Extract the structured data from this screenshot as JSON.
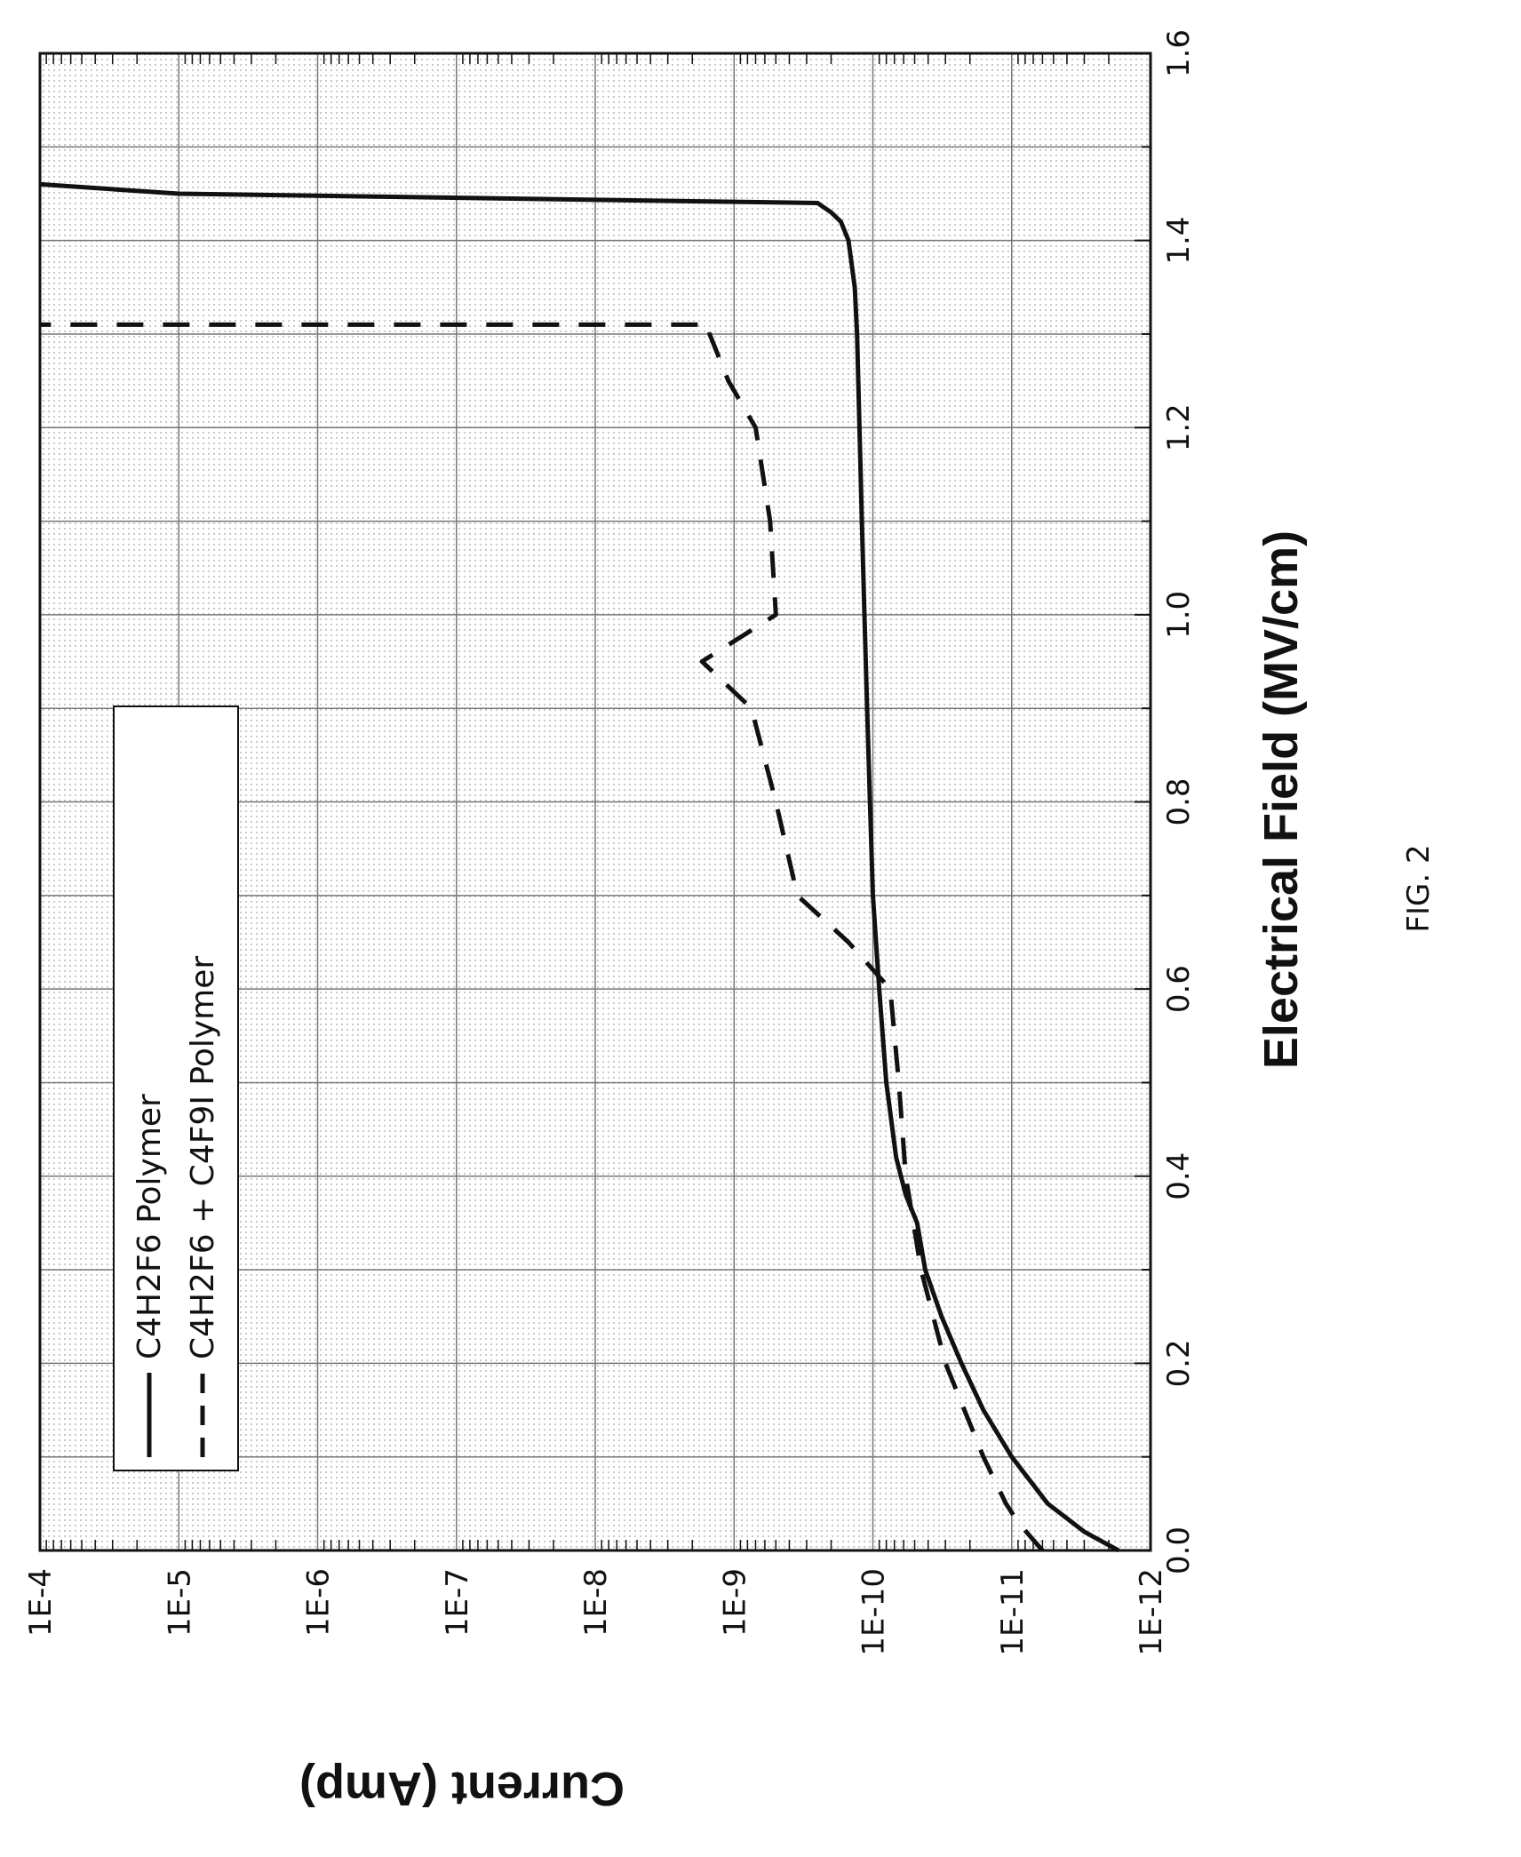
{
  "figure_label": "FIG. 2",
  "chart_data": {
    "type": "line",
    "title": "",
    "xlabel": "Electrical Field (MV/cm)",
    "ylabel": "Current (Amp)",
    "xlim": [
      0.0,
      1.6
    ],
    "ylim_log10": [
      -12,
      -4
    ],
    "yscale": "log",
    "orientation": "rotated 90 degrees counter-clockwise",
    "grid": true,
    "legend_position": "top-left",
    "x_ticks": [
      "0.0",
      "0.2",
      "0.4",
      "0.6",
      "0.8",
      "1.0",
      "1.2",
      "1.4",
      "1.6"
    ],
    "y_ticks": [
      "1E-12",
      "1E-11",
      "1E-10",
      "1E-9",
      "1E-8",
      "1E-7",
      "1E-6",
      "1E-5",
      "1E-4"
    ],
    "series": [
      {
        "name": "C4H2F6 Polymer",
        "style": "solid",
        "color": "#111111",
        "x": [
          0.0,
          0.02,
          0.05,
          0.1,
          0.15,
          0.2,
          0.25,
          0.3,
          0.35,
          0.38,
          0.42,
          0.5,
          0.6,
          0.7,
          0.8,
          0.9,
          1.0,
          1.1,
          1.2,
          1.3,
          1.35,
          1.4,
          1.42,
          1.43,
          1.44,
          1.45,
          1.46
        ],
        "y": [
          1.7e-12,
          3e-12,
          5.5e-12,
          1e-11,
          1.6e-11,
          2.3e-11,
          3.2e-11,
          4.2e-11,
          4.8e-11,
          5.8e-11,
          6.8e-11,
          8e-11,
          9e-11,
          1e-10,
          1.05e-10,
          1.1e-10,
          1.15e-10,
          1.2e-10,
          1.25e-10,
          1.3e-10,
          1.35e-10,
          1.5e-10,
          1.7e-10,
          2e-10,
          2.5e-10,
          1e-05,
          0.0001
        ]
      },
      {
        "name": "C4H2F6 + C4F9I Polymer",
        "style": "dashed",
        "color": "#111111",
        "x": [
          0.0,
          0.03,
          0.05,
          0.1,
          0.2,
          0.3,
          0.4,
          0.5,
          0.6,
          0.65,
          0.7,
          0.8,
          0.9,
          0.95,
          1.0,
          1.1,
          1.2,
          1.25,
          1.3,
          1.31,
          1.31
        ],
        "y": [
          6e-12,
          9e-12,
          1.1e-11,
          1.6e-11,
          3e-11,
          4.5e-11,
          5.8e-11,
          6.5e-11,
          7.5e-11,
          1.5e-10,
          3.5e-10,
          5e-10,
          7.5e-10,
          1.7e-09,
          5e-10,
          5.5e-10,
          7e-10,
          1.1e-09,
          1.5e-09,
          1.5e-09,
          0.0001
        ]
      }
    ]
  },
  "legend": {
    "entries": [
      "C4H2F6 Polymer",
      "C4H2F6 + C4F9I Polymer"
    ]
  }
}
